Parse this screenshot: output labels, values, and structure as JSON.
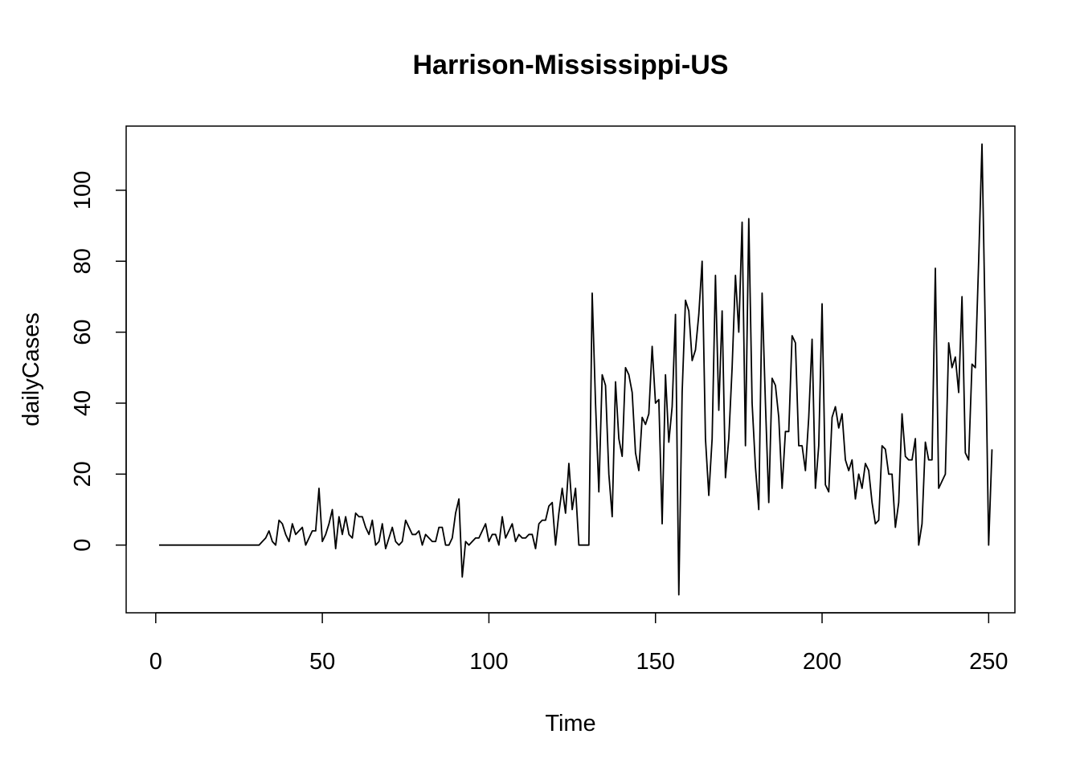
{
  "chart_data": {
    "type": "line",
    "title": "Harrison-Mississippi-US",
    "xlabel": "Time",
    "ylabel": "dailyCases",
    "xlim": [
      1,
      248
    ],
    "ylim": [
      -14,
      113
    ],
    "x_ticks": [
      0,
      50,
      100,
      150,
      200,
      250
    ],
    "y_ticks": [
      0,
      20,
      40,
      60,
      80,
      100
    ],
    "grid": false,
    "legend": "none",
    "line_color": "#000000",
    "series": [
      {
        "x_start": 1,
        "values": [
          0,
          0,
          0,
          0,
          0,
          0,
          0,
          0,
          0,
          0,
          0,
          0,
          0,
          0,
          0,
          0,
          0,
          0,
          0,
          0,
          0,
          0,
          0,
          0,
          0,
          0,
          0,
          0,
          0,
          0,
          0,
          1,
          2,
          4,
          1,
          0,
          7,
          6,
          3,
          1,
          6,
          3,
          4,
          5,
          0,
          2,
          4,
          4,
          16,
          1,
          3,
          6,
          10,
          -1,
          8,
          3,
          8,
          3,
          2,
          9,
          8,
          8,
          5,
          3,
          7,
          0,
          1,
          6,
          -1,
          2,
          5,
          1,
          0,
          1,
          7,
          5,
          3,
          3,
          4,
          0,
          3,
          2,
          1,
          1,
          5,
          5,
          0,
          0,
          2,
          9,
          13,
          -9,
          1,
          0,
          1,
          2,
          2,
          4,
          6,
          1,
          3,
          3,
          0,
          8,
          2,
          4,
          6,
          1,
          3,
          2,
          2,
          3,
          3,
          -1,
          6,
          7,
          7,
          11,
          12,
          0,
          9,
          16,
          9,
          23,
          10,
          16,
          0,
          0,
          0,
          0,
          71,
          40,
          15,
          48,
          45,
          20,
          8,
          46,
          30,
          25,
          50,
          48,
          43,
          26,
          21,
          36,
          34,
          37,
          56,
          40,
          41,
          6,
          48,
          29,
          39,
          65,
          -14,
          43,
          69,
          66,
          52,
          55,
          65,
          80,
          30,
          14,
          30,
          76,
          38,
          66,
          19,
          30,
          50,
          76,
          60,
          91,
          28,
          92,
          40,
          22,
          10,
          71,
          40,
          12,
          47,
          45,
          36,
          16,
          32,
          32,
          59,
          57,
          28,
          28,
          21,
          36,
          58,
          16,
          28,
          68,
          17,
          15,
          36,
          39,
          33,
          37,
          24,
          21,
          24,
          13,
          20,
          16,
          23,
          21,
          12,
          6,
          7,
          28,
          27,
          20,
          20,
          5,
          12,
          37,
          25,
          24,
          24,
          30,
          0,
          6,
          29,
          24,
          24,
          78,
          16,
          18,
          20,
          57,
          50,
          53,
          43,
          70,
          26,
          24,
          51,
          50,
          80,
          113,
          60,
          0,
          27
        ]
      }
    ]
  }
}
